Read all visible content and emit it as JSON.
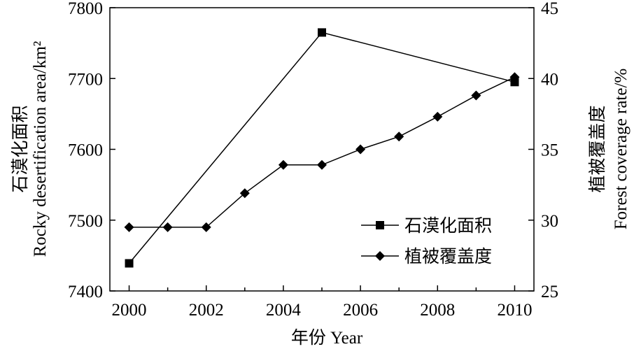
{
  "chart_data": {
    "type": "line",
    "xlabel": "年份 Year",
    "ylabel_left": "Rocky desertification area/km²",
    "ylabel_left_cn": "石漠化面积",
    "ylabel_right": "Forest coverage rate/%",
    "ylabel_right_cn": "植被覆盖度",
    "x_ticks": [
      2000,
      2002,
      2004,
      2006,
      2008,
      2010
    ],
    "xlim": [
      1999.5,
      2010.5
    ],
    "y_left_ticks": [
      7400,
      7500,
      7600,
      7700,
      7800
    ],
    "ylim_left": [
      7400,
      7800
    ],
    "y_right_ticks": [
      25,
      30,
      35,
      40,
      45
    ],
    "ylim_right": [
      25,
      45
    ],
    "grid": false,
    "legend_position": "lower-right",
    "series": [
      {
        "name": "石漠化面积",
        "axis": "left",
        "marker": "square",
        "x": [
          2000,
          2005,
          2010
        ],
        "y": [
          7439,
          7765,
          7695
        ]
      },
      {
        "name": "植被覆盖度",
        "axis": "right",
        "marker": "diamond",
        "x": [
          2000,
          2001,
          2002,
          2003,
          2004,
          2005,
          2006,
          2007,
          2008,
          2009,
          2010
        ],
        "y": [
          29.5,
          29.5,
          29.5,
          31.9,
          33.9,
          33.9,
          35.0,
          35.9,
          37.3,
          38.8,
          40.1
        ]
      }
    ]
  }
}
